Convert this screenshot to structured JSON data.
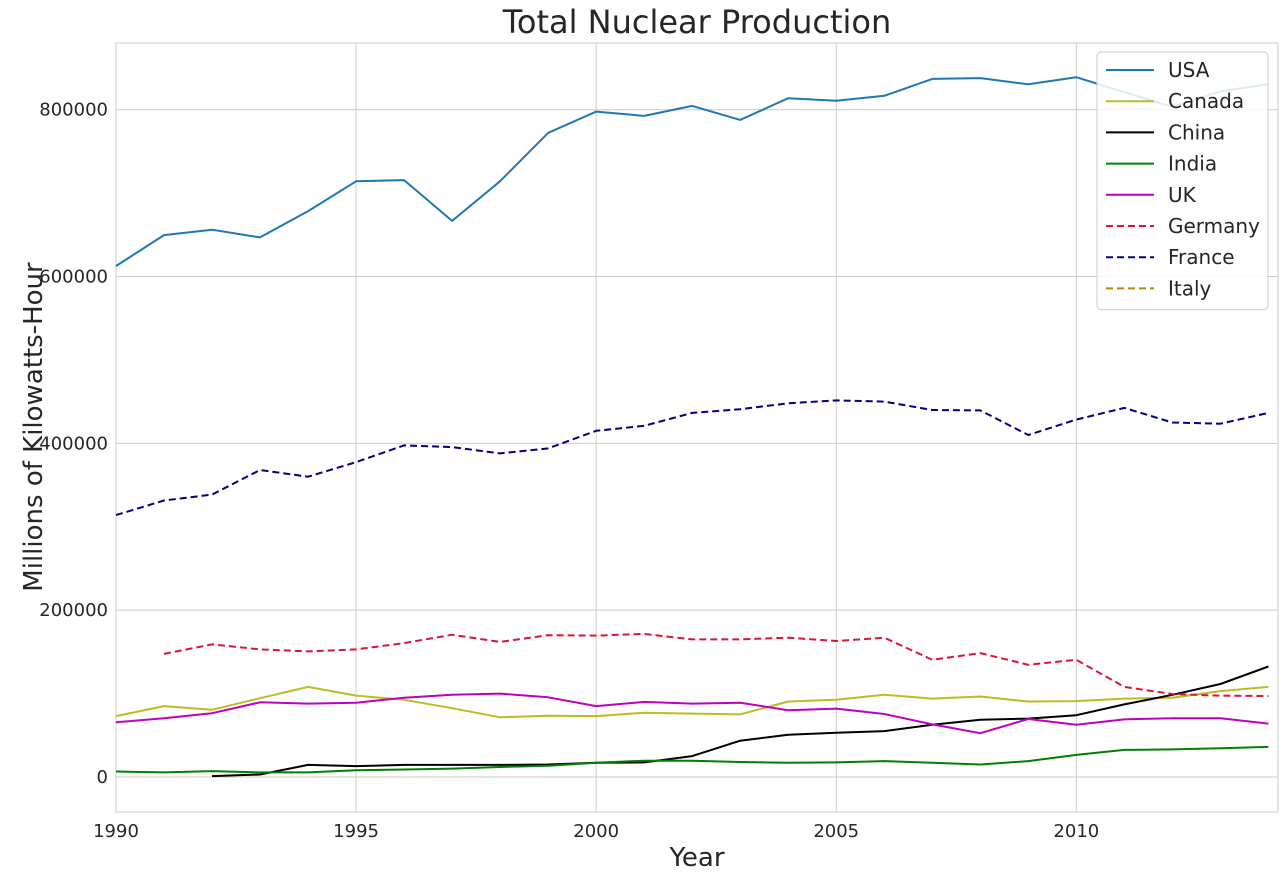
{
  "chart_data": {
    "type": "line",
    "title": "Total Nuclear Production",
    "xlabel": "Year",
    "ylabel": "Millions of Kilowatts-Hour",
    "xlim": [
      1990,
      2014.2
    ],
    "ylim": [
      -42000,
      880000
    ],
    "x_ticks": [
      1990,
      1995,
      2000,
      2005,
      2010
    ],
    "y_ticks": [
      0,
      200000,
      400000,
      600000,
      800000
    ],
    "grid": true,
    "legend_position": "top-right",
    "series": [
      {
        "name": "USA",
        "color": "#1f77b4",
        "dash": "solid",
        "points": [
          [
            1990,
            612600
          ],
          [
            1991,
            649700
          ],
          [
            1992,
            656200
          ],
          [
            1993,
            646900
          ],
          [
            1994,
            678500
          ],
          [
            1995,
            714200
          ],
          [
            1996,
            715600
          ],
          [
            1997,
            666700
          ],
          [
            1998,
            714300
          ],
          [
            1999,
            772200
          ],
          [
            2000,
            797800
          ],
          [
            2001,
            792600
          ],
          [
            2002,
            804600
          ],
          [
            2003,
            787800
          ],
          [
            2004,
            813800
          ],
          [
            2005,
            810800
          ],
          [
            2006,
            816700
          ],
          [
            2007,
            836900
          ],
          [
            2008,
            837900
          ],
          [
            2009,
            830500
          ],
          [
            2010,
            839000
          ],
          [
            2011,
            821000
          ],
          [
            2012,
            803400
          ],
          [
            2013,
            822000
          ],
          [
            2014,
            830700
          ]
        ]
      },
      {
        "name": "Canada",
        "color": "#bcbd22",
        "dash": "solid",
        "points": [
          [
            1990,
            73000
          ],
          [
            1991,
            85000
          ],
          [
            1992,
            80500
          ],
          [
            1993,
            94500
          ],
          [
            1994,
            108000
          ],
          [
            1995,
            97500
          ],
          [
            1996,
            92500
          ],
          [
            1997,
            82500
          ],
          [
            1998,
            71500
          ],
          [
            1999,
            73500
          ],
          [
            2000,
            73000
          ],
          [
            2001,
            77000
          ],
          [
            2002,
            76000
          ],
          [
            2003,
            75000
          ],
          [
            2004,
            90500
          ],
          [
            2005,
            92500
          ],
          [
            2006,
            98500
          ],
          [
            2007,
            94000
          ],
          [
            2008,
            96500
          ],
          [
            2009,
            90500
          ],
          [
            2010,
            91000
          ],
          [
            2011,
            94000
          ],
          [
            2012,
            95000
          ],
          [
            2013,
            103000
          ],
          [
            2014,
            108000
          ]
        ]
      },
      {
        "name": "China",
        "color": "#000000",
        "dash": "solid",
        "points": [
          [
            1992,
            1000
          ],
          [
            1993,
            3000
          ],
          [
            1994,
            14500
          ],
          [
            1995,
            13000
          ],
          [
            1996,
            14500
          ],
          [
            1997,
            14500
          ],
          [
            1998,
            14500
          ],
          [
            1999,
            15000
          ],
          [
            2000,
            17000
          ],
          [
            2001,
            17500
          ],
          [
            2002,
            25000
          ],
          [
            2003,
            43500
          ],
          [
            2004,
            50500
          ],
          [
            2005,
            53000
          ],
          [
            2006,
            55000
          ],
          [
            2007,
            62500
          ],
          [
            2008,
            68500
          ],
          [
            2009,
            70000
          ],
          [
            2010,
            74000
          ],
          [
            2011,
            87000
          ],
          [
            2012,
            98500
          ],
          [
            2013,
            111500
          ],
          [
            2014,
            132500
          ]
        ]
      },
      {
        "name": "India",
        "color": "#008000",
        "dash": "solid",
        "points": [
          [
            1990,
            6500
          ],
          [
            1991,
            5500
          ],
          [
            1992,
            7000
          ],
          [
            1993,
            5500
          ],
          [
            1994,
            5500
          ],
          [
            1995,
            8000
          ],
          [
            1996,
            9000
          ],
          [
            1997,
            10000
          ],
          [
            1998,
            12000
          ],
          [
            1999,
            13500
          ],
          [
            2000,
            17000
          ],
          [
            2001,
            19500
          ],
          [
            2002,
            19500
          ],
          [
            2003,
            18000
          ],
          [
            2004,
            17000
          ],
          [
            2005,
            17500
          ],
          [
            2006,
            19000
          ],
          [
            2007,
            17000
          ],
          [
            2008,
            15000
          ],
          [
            2009,
            19000
          ],
          [
            2010,
            26500
          ],
          [
            2011,
            32500
          ],
          [
            2012,
            33000
          ],
          [
            2013,
            34500
          ],
          [
            2014,
            36000
          ]
        ]
      },
      {
        "name": "UK",
        "color": "#bf00bf",
        "dash": "solid",
        "points": [
          [
            1990,
            65500
          ],
          [
            1991,
            70500
          ],
          [
            1992,
            76500
          ],
          [
            1993,
            89500
          ],
          [
            1994,
            88000
          ],
          [
            1995,
            89000
          ],
          [
            1996,
            95000
          ],
          [
            1997,
            98500
          ],
          [
            1998,
            100000
          ],
          [
            1999,
            95500
          ],
          [
            2000,
            85000
          ],
          [
            2001,
            90000
          ],
          [
            2002,
            88000
          ],
          [
            2003,
            89000
          ],
          [
            2004,
            80000
          ],
          [
            2005,
            82000
          ],
          [
            2006,
            75500
          ],
          [
            2007,
            63000
          ],
          [
            2008,
            52500
          ],
          [
            2009,
            69500
          ],
          [
            2010,
            62500
          ],
          [
            2011,
            69000
          ],
          [
            2012,
            70500
          ],
          [
            2013,
            70500
          ],
          [
            2014,
            64000
          ]
        ]
      },
      {
        "name": "Germany",
        "color": "#dc143c",
        "dash": "dashed",
        "points": [
          [
            1991,
            147500
          ],
          [
            1992,
            159000
          ],
          [
            1993,
            153000
          ],
          [
            1994,
            150500
          ],
          [
            1995,
            153000
          ],
          [
            1996,
            160500
          ],
          [
            1997,
            170500
          ],
          [
            1998,
            162000
          ],
          [
            1999,
            170000
          ],
          [
            2000,
            169500
          ],
          [
            2001,
            171500
          ],
          [
            2002,
            165000
          ],
          [
            2003,
            165000
          ],
          [
            2004,
            167000
          ],
          [
            2005,
            163000
          ],
          [
            2006,
            167000
          ],
          [
            2007,
            140500
          ],
          [
            2008,
            148500
          ],
          [
            2009,
            134500
          ],
          [
            2010,
            140500
          ],
          [
            2011,
            108000
          ],
          [
            2012,
            99500
          ],
          [
            2013,
            97500
          ],
          [
            2014,
            97000
          ]
        ]
      },
      {
        "name": "France",
        "color": "#000080",
        "dash": "dashed",
        "points": [
          [
            1990,
            314000
          ],
          [
            1991,
            331500
          ],
          [
            1992,
            338500
          ],
          [
            1993,
            368000
          ],
          [
            1994,
            360000
          ],
          [
            1995,
            377500
          ],
          [
            1996,
            397500
          ],
          [
            1997,
            395500
          ],
          [
            1998,
            388000
          ],
          [
            1999,
            394000
          ],
          [
            2000,
            415000
          ],
          [
            2001,
            421000
          ],
          [
            2002,
            436500
          ],
          [
            2003,
            441000
          ],
          [
            2004,
            448000
          ],
          [
            2005,
            451500
          ],
          [
            2006,
            450000
          ],
          [
            2007,
            440000
          ],
          [
            2008,
            439500
          ],
          [
            2009,
            410000
          ],
          [
            2010,
            428500
          ],
          [
            2011,
            442500
          ],
          [
            2012,
            425000
          ],
          [
            2013,
            423500
          ],
          [
            2014,
            436500
          ]
        ]
      },
      {
        "name": "Italy",
        "color": "#b8860b",
        "dash": "dashed",
        "points": []
      }
    ]
  }
}
